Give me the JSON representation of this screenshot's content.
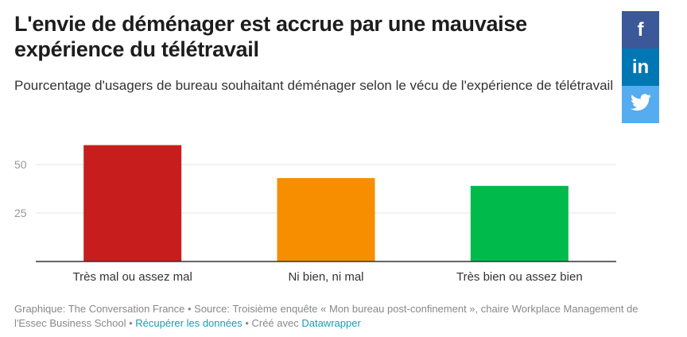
{
  "title": "L'envie de déménager est accrue par une mauvaise expérience du télétravail",
  "subtitle": "Pourcentage d'usagers de bureau souhaitant déménager selon le vécu de l'expérience de télétravail",
  "share": [
    {
      "icon": "facebook-icon",
      "glyph": "f",
      "color": "#3b5998"
    },
    {
      "icon": "linkedin-icon",
      "glyph": "in",
      "color": "#0077b5"
    },
    {
      "icon": "twitter-icon",
      "glyph": "🐦",
      "color": "#55acee"
    }
  ],
  "chart_data": {
    "type": "bar",
    "title": "",
    "xlabel": "",
    "ylabel": "",
    "categories": [
      "Très mal ou assez mal",
      "Ni bien, ni mal",
      "Très bien ou assez bien"
    ],
    "values": [
      60,
      43,
      39
    ],
    "colors": [
      "#c71e1d",
      "#f68e00",
      "#00bb4c"
    ],
    "yticks": [
      25,
      50
    ],
    "ylim": [
      0,
      62
    ],
    "grid": true
  },
  "footer": {
    "text1": "Graphique: The Conversation France • Source: Troisième enquête « Mon bureau post-confinement », chaire Workplace Management de l'Essec Business School • ",
    "link1": "Récupérer les données",
    "text2": " • Créé avec ",
    "link2": "Datawrapper"
  }
}
